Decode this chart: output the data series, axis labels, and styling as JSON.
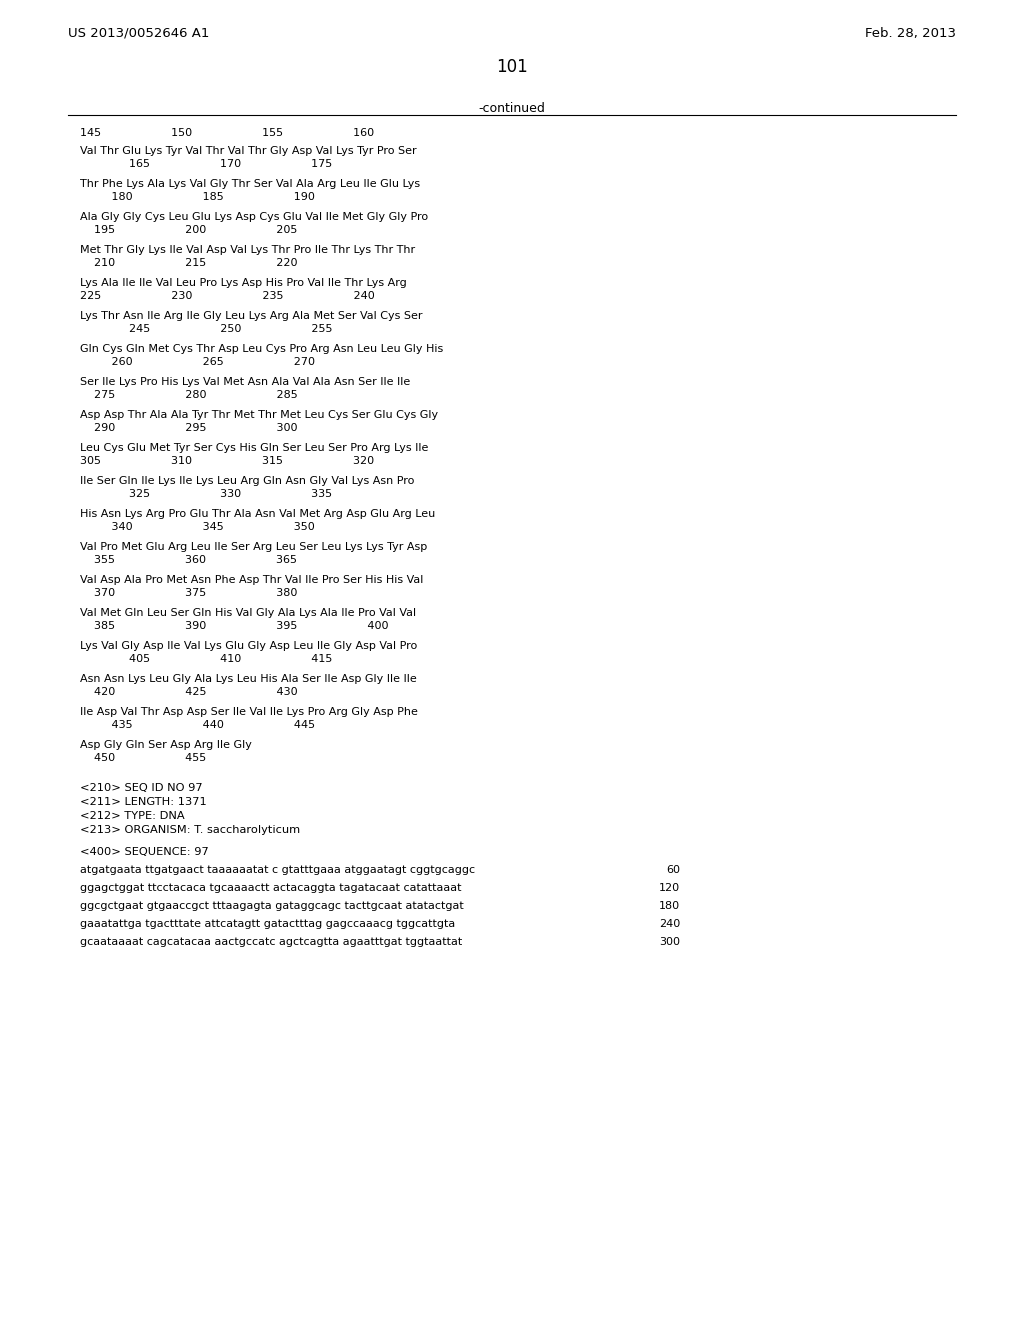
{
  "header_left": "US 2013/0052646 A1",
  "header_right": "Feb. 28, 2013",
  "page_number": "101",
  "continued_label": "-continued",
  "background_color": "#ffffff",
  "text_color": "#000000",
  "line_color": "#000000",
  "number_row": "145                    150                    155                    160",
  "amino_acid_lines": [
    [
      "Val Thr Glu Lys Tyr Val Thr Val Thr Gly Asp Val Lys Tyr Pro Ser",
      "              165                    170                    175"
    ],
    [
      "Thr Phe Lys Ala Lys Val Gly Thr Ser Val Ala Arg Leu Ile Glu Lys",
      "         180                    185                    190"
    ],
    [
      "Ala Gly Gly Cys Leu Glu Lys Asp Cys Glu Val Ile Met Gly Gly Pro",
      "    195                    200                    205"
    ],
    [
      "Met Thr Gly Lys Ile Val Asp Val Lys Thr Pro Ile Thr Lys Thr Thr",
      "    210                    215                    220"
    ],
    [
      "Lys Ala Ile Ile Val Leu Pro Lys Asp His Pro Val Ile Thr Lys Arg",
      "225                    230                    235                    240"
    ],
    [
      "Lys Thr Asn Ile Arg Ile Gly Leu Lys Arg Ala Met Ser Val Cys Ser",
      "              245                    250                    255"
    ],
    [
      "Gln Cys Gln Met Cys Thr Asp Leu Cys Pro Arg Asn Leu Leu Gly His",
      "         260                    265                    270"
    ],
    [
      "Ser Ile Lys Pro His Lys Val Met Asn Ala Val Ala Asn Ser Ile Ile",
      "    275                    280                    285"
    ],
    [
      "Asp Asp Thr Ala Ala Tyr Thr Met Thr Met Leu Cys Ser Glu Cys Gly",
      "    290                    295                    300"
    ],
    [
      "Leu Cys Glu Met Tyr Ser Cys His Gln Ser Leu Ser Pro Arg Lys Ile",
      "305                    310                    315                    320"
    ],
    [
      "Ile Ser Gln Ile Lys Ile Lys Leu Arg Gln Asn Gly Val Lys Asn Pro",
      "              325                    330                    335"
    ],
    [
      "His Asn Lys Arg Pro Glu Thr Ala Asn Val Met Arg Asp Glu Arg Leu",
      "         340                    345                    350"
    ],
    [
      "Val Pro Met Glu Arg Leu Ile Ser Arg Leu Ser Leu Lys Lys Tyr Asp",
      "    355                    360                    365"
    ],
    [
      "Val Asp Ala Pro Met Asn Phe Asp Thr Val Ile Pro Ser His His Val",
      "    370                    375                    380"
    ],
    [
      "Val Met Gln Leu Ser Gln His Val Gly Ala Lys Ala Ile Pro Val Val",
      "    385                    390                    395                    400"
    ],
    [
      "Lys Val Gly Asp Ile Val Lys Glu Gly Asp Leu Ile Gly Asp Val Pro",
      "              405                    410                    415"
    ],
    [
      "Asn Asn Lys Leu Gly Ala Lys Leu His Ala Ser Ile Asp Gly Ile Ile",
      "    420                    425                    430"
    ],
    [
      "Ile Asp Val Thr Asp Asp Ser Ile Val Ile Lys Pro Arg Gly Asp Phe",
      "         435                    440                    445"
    ],
    [
      "Asp Gly Gln Ser Asp Arg Ile Gly",
      "    450                    455"
    ]
  ],
  "seq_info_lines": [
    "<210> SEQ ID NO 97",
    "<211> LENGTH: 1371",
    "<212> TYPE: DNA",
    "<213> ORGANISM: T. saccharolyticum"
  ],
  "sequence_label": "<400> SEQUENCE: 97",
  "dna_lines": [
    [
      "atgatgaata ttgatgaact taaaaaatat c gtatttgaaa atggaatagt cggtgcaggc",
      "60"
    ],
    [
      "ggagctggat ttcctacaca tgcaaaactt actacaggta tagatacaat catattaaat",
      "120"
    ],
    [
      "ggcgctgaat gtgaaccgct tttaagagta gataggcagc tacttgcaat atatactgat",
      "180"
    ],
    [
      "gaaatattga tgactttate attcatagtt gatactttag gagccaaacg tggcattgta",
      "240"
    ],
    [
      "gcaataaaat cagcatacaa aactgccatc agctcagtta agaatttgat tggtaattat",
      "300"
    ]
  ]
}
